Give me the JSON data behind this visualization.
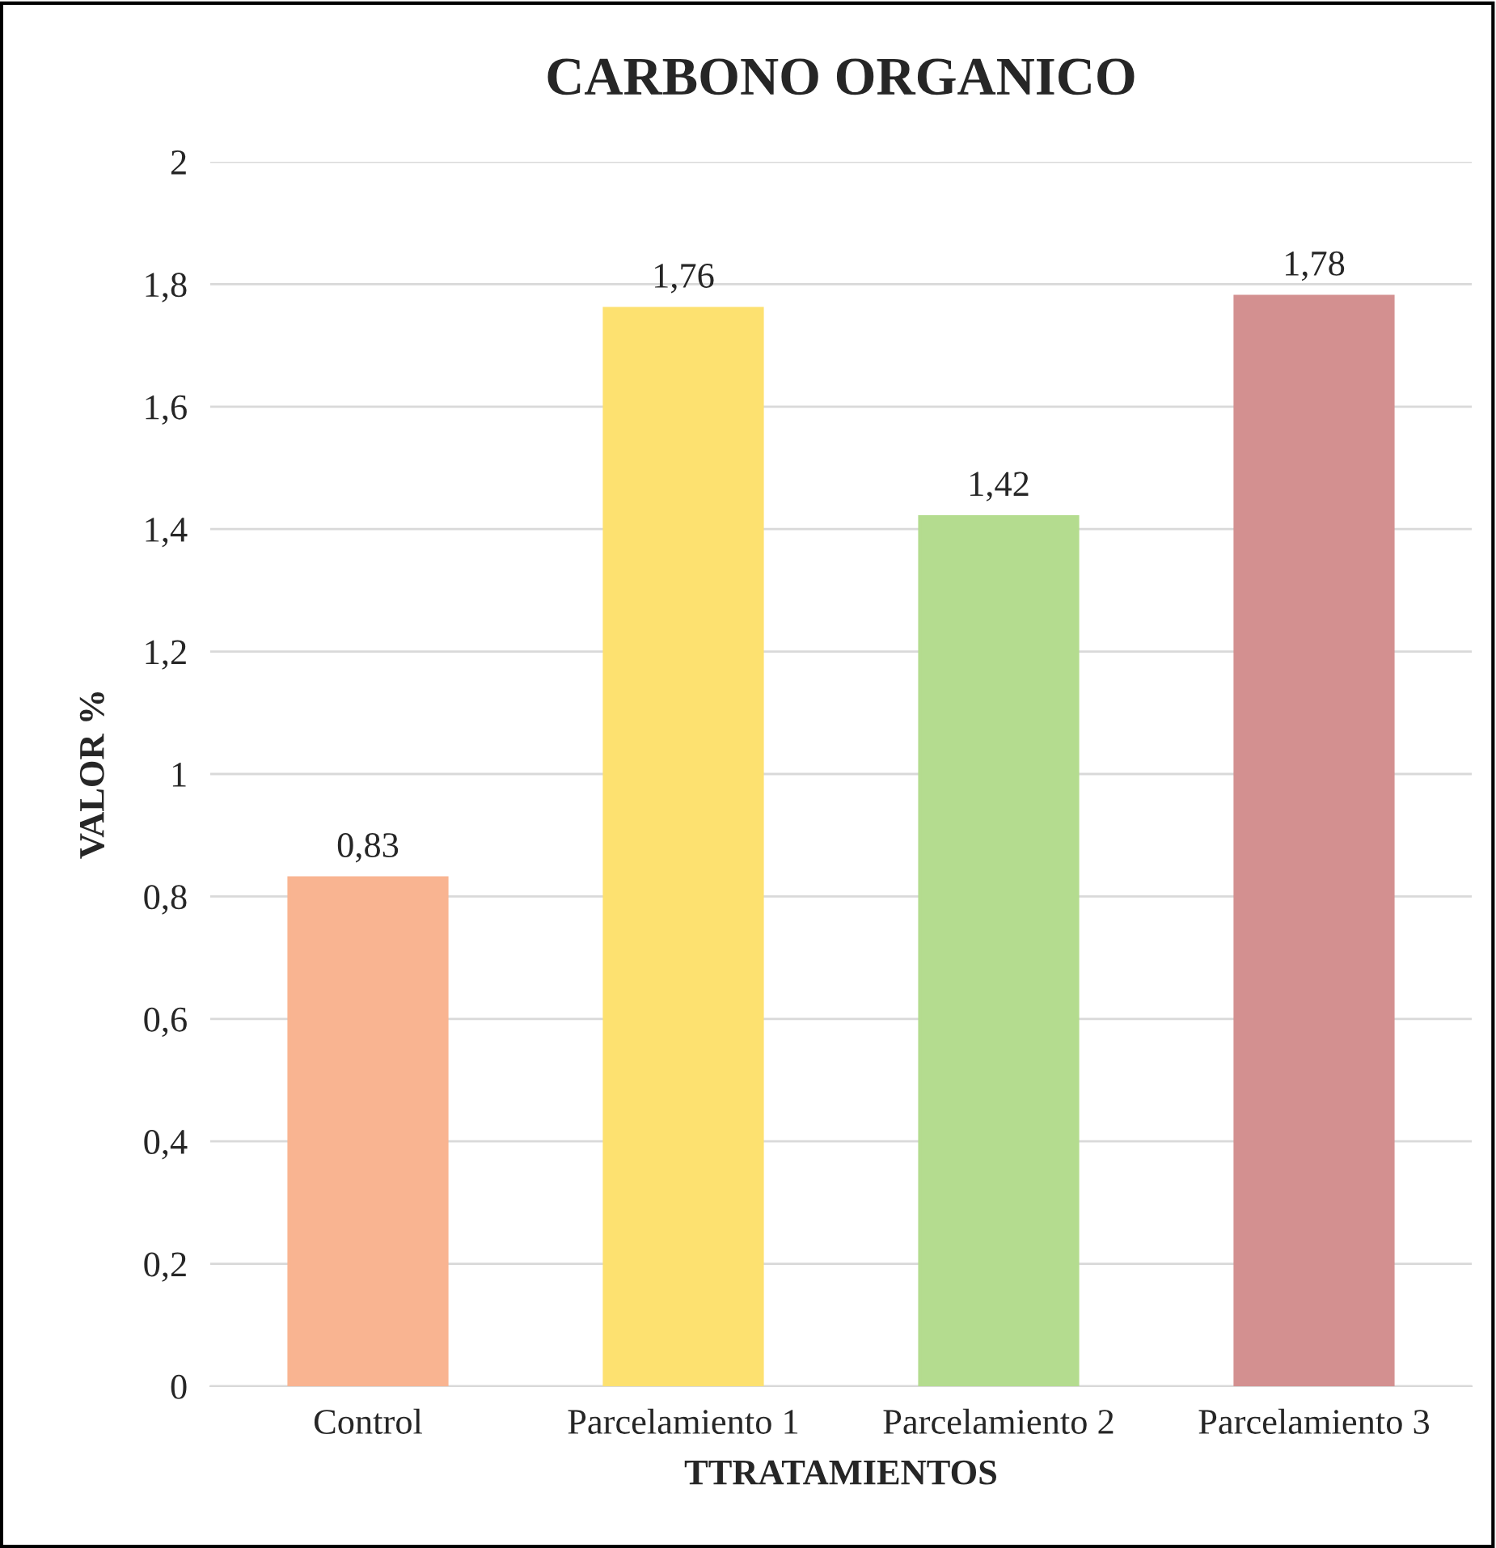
{
  "chart_data": {
    "type": "bar",
    "title": "CARBONO ORGANICO",
    "xlabel": "TTRATAMIENTOS",
    "ylabel": "VALOR %",
    "categories": [
      "Control",
      "Parcelamiento 1",
      "Parcelamiento 2",
      "Parcelamiento 3"
    ],
    "values": [
      0.83,
      1.76,
      1.42,
      1.78
    ],
    "value_labels": [
      "0,83",
      "1,76",
      "1,42",
      "1,78"
    ],
    "colors": [
      "#f9b491",
      "#fde170",
      "#b4dc8f",
      "#d39090"
    ],
    "ylim": [
      0,
      2
    ],
    "yticks": [
      0,
      {
        "value": 0.2,
        "label": "0,2"
      },
      {
        "value": 0.4,
        "label": "0,4"
      },
      {
        "value": 0.6,
        "label": "0,6"
      },
      {
        "value": 0.8,
        "label": "0,8"
      },
      1,
      {
        "value": 1.2,
        "label": "1,2"
      },
      {
        "value": 1.4,
        "label": "1,4"
      },
      {
        "value": 1.6,
        "label": "1,6"
      },
      {
        "value": 1.8,
        "label": "1,8"
      },
      2
    ],
    "grid": "y",
    "legend": false
  }
}
